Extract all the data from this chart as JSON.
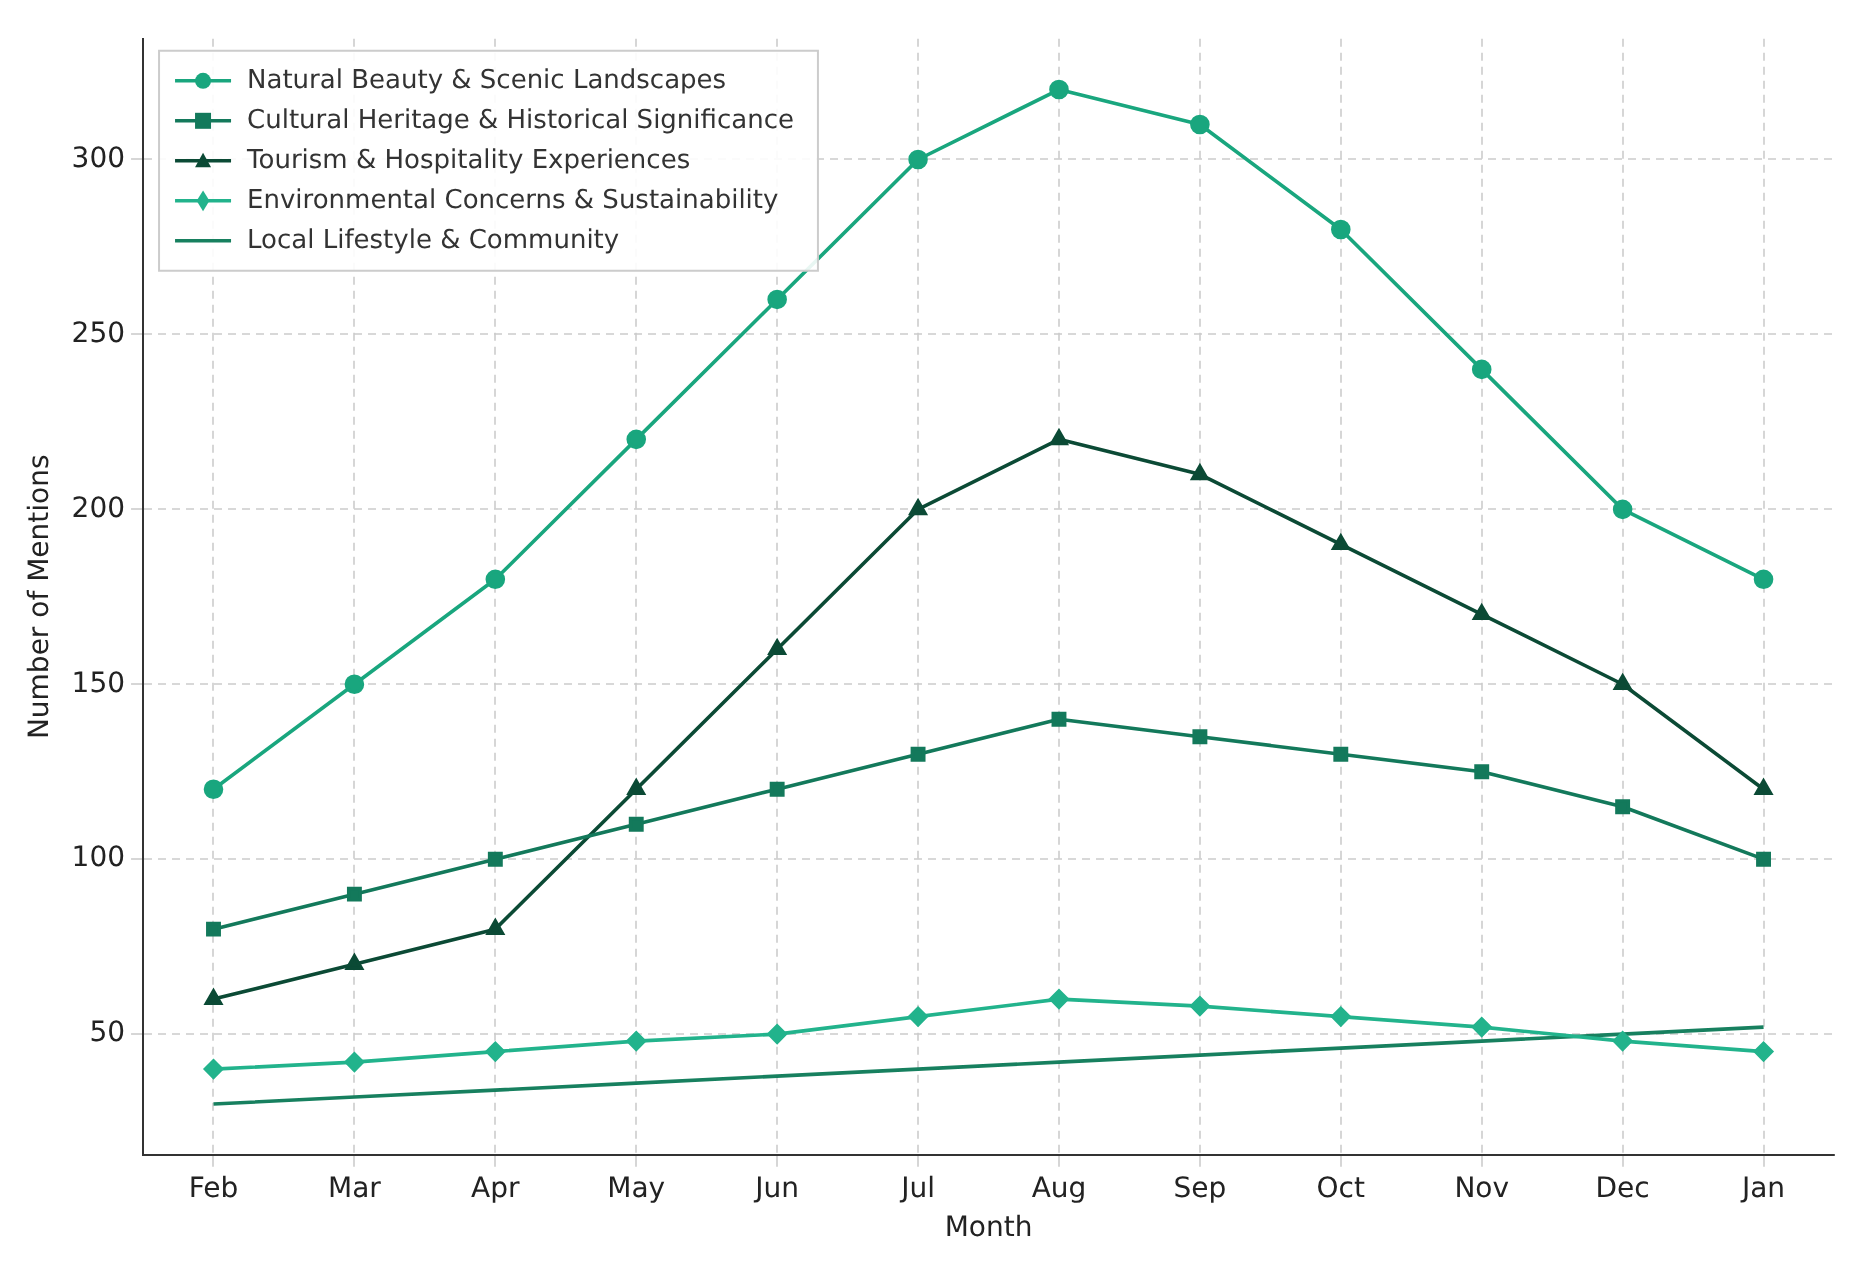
{
  "chart_data": {
    "type": "line",
    "xlabel": "Month",
    "ylabel": "Number of Mentions",
    "categories": [
      "Feb",
      "Mar",
      "Apr",
      "May",
      "Jun",
      "Jul",
      "Aug",
      "Sep",
      "Oct",
      "Nov",
      "Dec",
      "Jan"
    ],
    "series": [
      {
        "name": "Natural Beauty & Scenic Landscapes",
        "color": "#19a67e",
        "marker": "circle",
        "values": [
          120,
          150,
          180,
          220,
          260,
          300,
          320,
          310,
          280,
          240,
          200,
          180
        ]
      },
      {
        "name": "Cultural Heritage & Historical Significance",
        "color": "#13795b",
        "marker": "square",
        "values": [
          80,
          90,
          100,
          110,
          120,
          130,
          140,
          135,
          130,
          125,
          115,
          100
        ]
      },
      {
        "name": "Tourism & Hospitality Experiences",
        "color": "#0b4a35",
        "marker": "triangle",
        "values": [
          60,
          70,
          80,
          120,
          160,
          200,
          220,
          210,
          190,
          170,
          150,
          120
        ]
      },
      {
        "name": "Environmental Concerns & Sustainability",
        "color": "#22b38c",
        "marker": "diamond",
        "values": [
          40,
          42,
          45,
          48,
          50,
          55,
          60,
          58,
          55,
          52,
          48,
          45
        ]
      },
      {
        "name": "Local Lifestyle & Community",
        "color": "#17805f",
        "marker": "none",
        "values": [
          30,
          32,
          34,
          36,
          38,
          40,
          42,
          44,
          46,
          48,
          50,
          52
        ]
      }
    ],
    "ylim": [
      15.5,
      334.5
    ],
    "yticks": [
      50,
      100,
      150,
      200,
      250,
      300
    ],
    "grid": true,
    "legend": "top left",
    "line_style": "solid"
  }
}
